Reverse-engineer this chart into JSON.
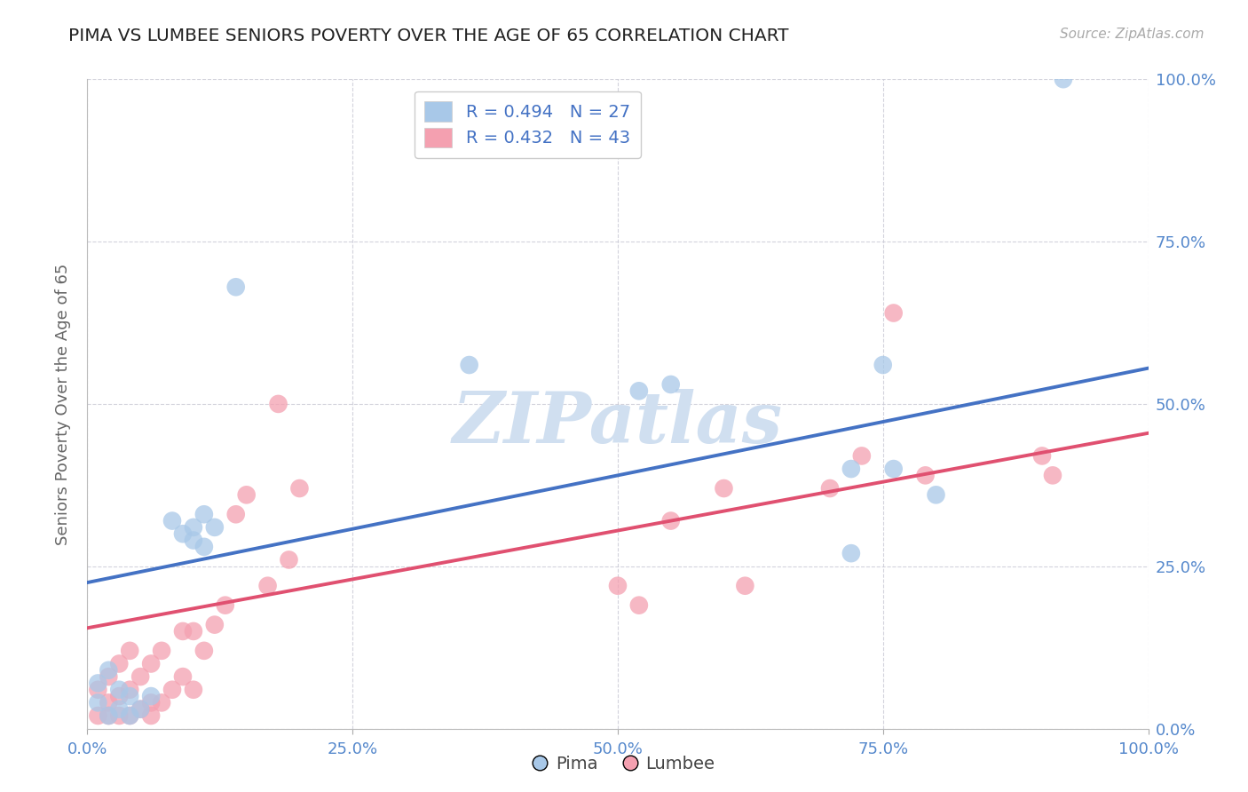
{
  "title": "PIMA VS LUMBEE SENIORS POVERTY OVER THE AGE OF 65 CORRELATION CHART",
  "source_text": "Source: ZipAtlas.com",
  "ylabel": "Seniors Poverty Over the Age of 65",
  "pima_R": 0.494,
  "pima_N": 27,
  "lumbee_R": 0.432,
  "lumbee_N": 43,
  "pima_color": "#a8c8e8",
  "lumbee_color": "#f4a0b0",
  "pima_line_color": "#4472c4",
  "lumbee_line_color": "#e05070",
  "background_color": "#ffffff",
  "grid_color": "#c8c8d4",
  "axis_label_color": "#666666",
  "tick_label_color": "#5588cc",
  "watermark_color": "#d0dff0",
  "watermark_text": "ZIPatlas",
  "pima_line_x0": 0.0,
  "pima_line_y0": 0.225,
  "pima_line_x1": 1.0,
  "pima_line_y1": 0.555,
  "lumbee_line_x0": 0.0,
  "lumbee_line_y0": 0.155,
  "lumbee_line_x1": 1.0,
  "lumbee_line_y1": 0.455,
  "pima_x": [
    0.01,
    0.01,
    0.02,
    0.02,
    0.03,
    0.03,
    0.04,
    0.04,
    0.05,
    0.06,
    0.08,
    0.09,
    0.1,
    0.1,
    0.11,
    0.11,
    0.12,
    0.14,
    0.36,
    0.52,
    0.55,
    0.72,
    0.72,
    0.75,
    0.76,
    0.8,
    0.92
  ],
  "pima_y": [
    0.04,
    0.07,
    0.02,
    0.09,
    0.03,
    0.06,
    0.02,
    0.05,
    0.03,
    0.05,
    0.32,
    0.3,
    0.29,
    0.31,
    0.28,
    0.33,
    0.31,
    0.68,
    0.56,
    0.52,
    0.53,
    0.27,
    0.4,
    0.56,
    0.4,
    0.36,
    1.0
  ],
  "lumbee_x": [
    0.01,
    0.01,
    0.02,
    0.02,
    0.02,
    0.03,
    0.03,
    0.03,
    0.04,
    0.04,
    0.04,
    0.05,
    0.05,
    0.06,
    0.06,
    0.06,
    0.07,
    0.07,
    0.08,
    0.09,
    0.09,
    0.1,
    0.1,
    0.11,
    0.12,
    0.13,
    0.14,
    0.15,
    0.17,
    0.18,
    0.19,
    0.2,
    0.5,
    0.52,
    0.55,
    0.6,
    0.62,
    0.7,
    0.73,
    0.76,
    0.79,
    0.9,
    0.91
  ],
  "lumbee_y": [
    0.02,
    0.06,
    0.02,
    0.04,
    0.08,
    0.02,
    0.05,
    0.1,
    0.02,
    0.06,
    0.12,
    0.03,
    0.08,
    0.02,
    0.04,
    0.1,
    0.04,
    0.12,
    0.06,
    0.08,
    0.15,
    0.06,
    0.15,
    0.12,
    0.16,
    0.19,
    0.33,
    0.36,
    0.22,
    0.5,
    0.26,
    0.37,
    0.22,
    0.19,
    0.32,
    0.37,
    0.22,
    0.37,
    0.42,
    0.64,
    0.39,
    0.42,
    0.39
  ],
  "ytick_labels": [
    "0.0%",
    "25.0%",
    "50.0%",
    "75.0%",
    "100.0%"
  ],
  "ytick_values": [
    0.0,
    0.25,
    0.5,
    0.75,
    1.0
  ],
  "xtick_labels": [
    "0.0%",
    "25.0%",
    "50.0%",
    "75.0%",
    "100.0%"
  ],
  "xtick_values": [
    0.0,
    0.25,
    0.5,
    0.75,
    1.0
  ]
}
